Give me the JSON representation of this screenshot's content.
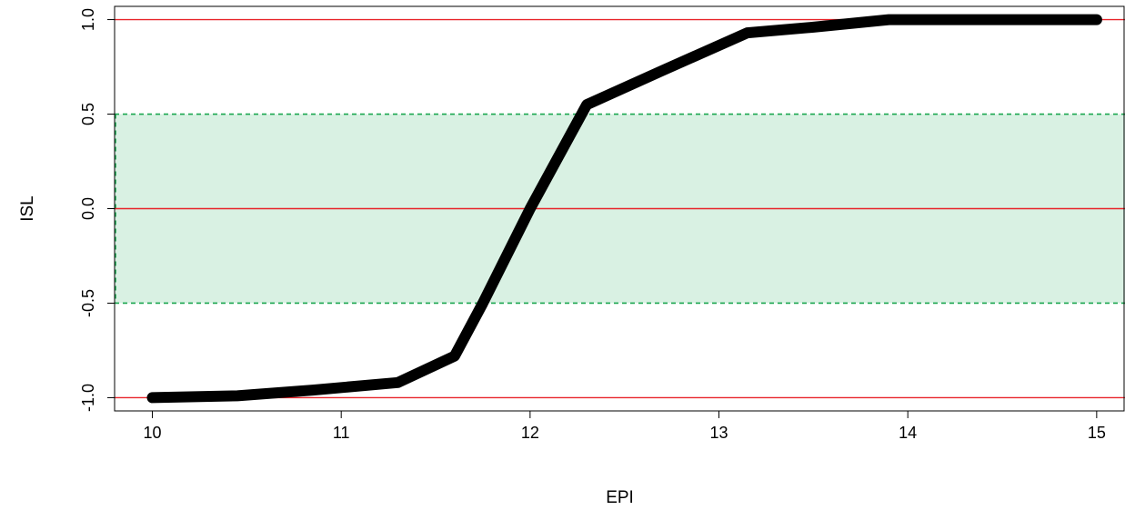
{
  "chart_data": {
    "type": "line",
    "xlabel": "EPI",
    "ylabel": "ISL",
    "xlim": [
      9.8,
      15.15
    ],
    "ylim": [
      -1.07,
      1.07
    ],
    "x_ticks": [
      "10",
      "11",
      "12",
      "13",
      "14",
      "15"
    ],
    "y_ticks": [
      "-1.0",
      "-0.5",
      "0.0",
      "0.5",
      "1.0"
    ],
    "series": [
      {
        "x": [
          10.0,
          10.45,
          10.85,
          11.3,
          11.6,
          11.75,
          12.0,
          12.3,
          12.7,
          13.15,
          13.5,
          13.9,
          14.2,
          15.0
        ],
        "y": [
          -1.0,
          -0.99,
          -0.96,
          -0.92,
          -0.78,
          -0.5,
          0.0,
          0.55,
          0.73,
          0.93,
          0.96,
          1.0,
          1.0,
          1.0
        ],
        "color": "#000000"
      }
    ],
    "reference_lines": [
      {
        "y": 1.0,
        "color": "#e8242a",
        "style": "solid"
      },
      {
        "y": 0.0,
        "color": "#e8242a",
        "style": "solid"
      },
      {
        "y": -1.0,
        "color": "#e8242a",
        "style": "solid"
      }
    ],
    "band": {
      "y_low": -0.5,
      "y_high": 0.5,
      "fill": "#d9f1e3",
      "border": "#1aa64f",
      "style": "dashed"
    },
    "grid": false
  }
}
